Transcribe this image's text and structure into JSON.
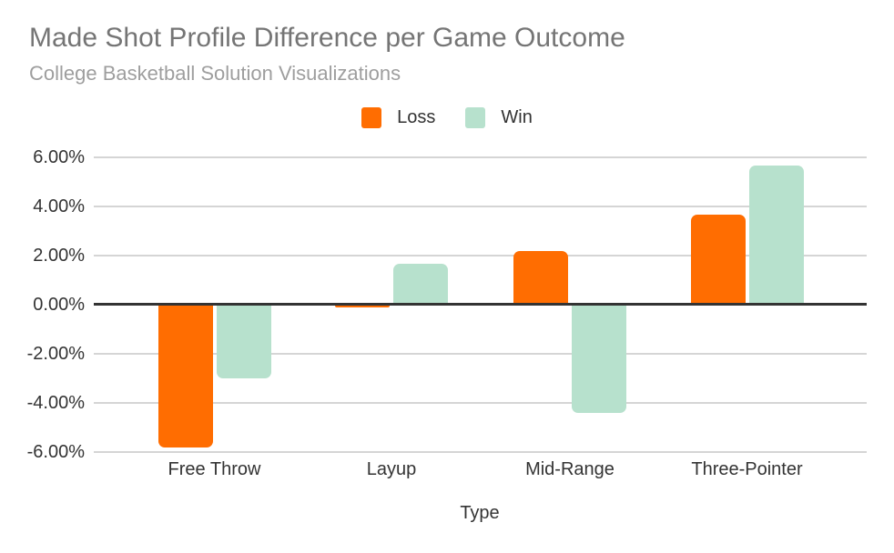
{
  "chart_data": {
    "type": "bar",
    "title": "Made Shot Profile Difference per Game Outcome",
    "subtitle": "College Basketball Solution Visualizations",
    "categories": [
      "Free Throw",
      "Layup",
      "Mid-Range",
      "Three-Pointer"
    ],
    "series": [
      {
        "name": "Loss",
        "color": "#ff6d01",
        "values": [
          -5.8,
          -0.1,
          2.2,
          3.65
        ]
      },
      {
        "name": "Win",
        "color": "#b7e1cd",
        "values": [
          -3.0,
          1.65,
          -4.4,
          5.65
        ]
      }
    ],
    "xlabel": "Type",
    "ylabel": "",
    "ylim": [
      -6.6,
      6.6
    ],
    "yticks": [
      {
        "value": 6,
        "label": "6.00%"
      },
      {
        "value": 4,
        "label": "4.00%"
      },
      {
        "value": 2,
        "label": "2.00%"
      },
      {
        "value": 0,
        "label": "0.00%"
      },
      {
        "value": -2,
        "label": "-2.00%"
      },
      {
        "value": -4,
        "label": "-4.00%"
      },
      {
        "value": -6,
        "label": "-6.00%"
      }
    ],
    "value_format": "percent",
    "grid": true,
    "legend_position": "top"
  },
  "colors": {
    "background": "#ffffff",
    "title": "#757575",
    "subtitle": "#9e9e9e",
    "axis_text": "#333333",
    "gridline": "#d5d5d5",
    "zero_line": "#333333",
    "loss": "#ff6d01",
    "win": "#b7e1cd"
  }
}
